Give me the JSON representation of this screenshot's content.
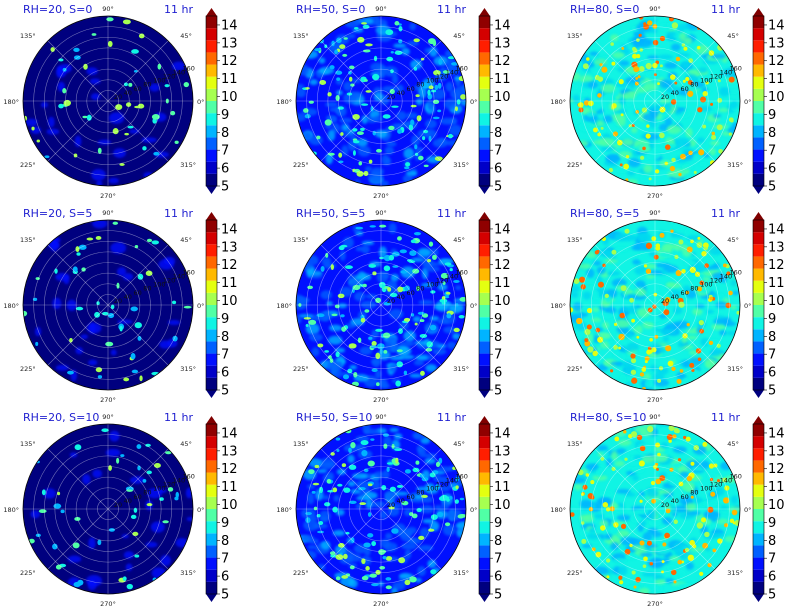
{
  "chart_data": [
    {
      "type": "heatmap",
      "projection": "polar",
      "title": "RH=20, S=0",
      "time_label": "11 hr",
      "field_level": "low",
      "r_tick_labels": [
        "20",
        "40",
        "60",
        "80",
        "100",
        "120",
        "140",
        "160"
      ],
      "angle_labels": [
        "90°",
        "45°",
        "0°",
        "315°",
        "270°",
        "225°",
        "180°",
        "135°"
      ],
      "colorbar": {
        "ticks": [
          "5",
          "6",
          "7",
          "8",
          "9",
          "10",
          "11",
          "12",
          "13",
          "14"
        ],
        "range": [
          5,
          14.5
        ]
      }
    },
    {
      "type": "heatmap",
      "projection": "polar",
      "title": "RH=50, S=0",
      "time_label": "11 hr",
      "field_level": "mid",
      "r_tick_labels": [
        "20",
        "40",
        "60",
        "80",
        "100",
        "120",
        "140",
        "160"
      ],
      "angle_labels": [
        "90°",
        "45°",
        "0°",
        "315°",
        "270°",
        "225°",
        "180°",
        "135°"
      ],
      "colorbar": {
        "ticks": [
          "5",
          "6",
          "7",
          "8",
          "9",
          "10",
          "11",
          "12",
          "13",
          "14"
        ],
        "range": [
          5,
          14.5
        ]
      }
    },
    {
      "type": "heatmap",
      "projection": "polar",
      "title": "RH=80, S=0",
      "time_label": "11 hr",
      "field_level": "high",
      "r_tick_labels": [
        "20",
        "40",
        "60",
        "80",
        "100",
        "120",
        "140",
        "160"
      ],
      "angle_labels": [
        "90°",
        "45°",
        "0°",
        "315°",
        "270°",
        "225°",
        "180°",
        "135°"
      ],
      "colorbar": {
        "ticks": [
          "5",
          "6",
          "7",
          "8",
          "9",
          "10",
          "11",
          "12",
          "13",
          "14"
        ],
        "range": [
          5,
          14.5
        ]
      }
    },
    {
      "type": "heatmap",
      "projection": "polar",
      "title": "RH=20, S=5",
      "time_label": "11 hr",
      "field_level": "low",
      "r_tick_labels": [
        "20",
        "40",
        "60",
        "80",
        "100",
        "120",
        "140",
        "160"
      ],
      "angle_labels": [
        "90°",
        "45°",
        "0°",
        "315°",
        "270°",
        "225°",
        "180°",
        "135°"
      ],
      "colorbar": {
        "ticks": [
          "5",
          "6",
          "7",
          "8",
          "9",
          "10",
          "11",
          "12",
          "13",
          "14"
        ],
        "range": [
          5,
          14.5
        ]
      }
    },
    {
      "type": "heatmap",
      "projection": "polar",
      "title": "RH=50, S=5",
      "time_label": "11 hr",
      "field_level": "mid",
      "r_tick_labels": [
        "20",
        "40",
        "60",
        "80",
        "100",
        "120",
        "140",
        "160"
      ],
      "angle_labels": [
        "90°",
        "45°",
        "0°",
        "315°",
        "270°",
        "225°",
        "180°",
        "135°"
      ],
      "colorbar": {
        "ticks": [
          "5",
          "6",
          "7",
          "8",
          "9",
          "10",
          "11",
          "12",
          "13",
          "14"
        ],
        "range": [
          5,
          14.5
        ]
      }
    },
    {
      "type": "heatmap",
      "projection": "polar",
      "title": "RH=80, S=5",
      "time_label": "11 hr",
      "field_level": "high",
      "r_tick_labels": [
        "20",
        "40",
        "60",
        "80",
        "100",
        "120",
        "140",
        "160"
      ],
      "angle_labels": [
        "90°",
        "45°",
        "0°",
        "315°",
        "270°",
        "225°",
        "180°",
        "135°"
      ],
      "colorbar": {
        "ticks": [
          "5",
          "6",
          "7",
          "8",
          "9",
          "10",
          "11",
          "12",
          "13",
          "14"
        ],
        "range": [
          5,
          14.5
        ]
      }
    },
    {
      "type": "heatmap",
      "projection": "polar",
      "title": "RH=20, S=10",
      "time_label": "11 hr",
      "field_level": "low",
      "r_tick_labels": [
        "20",
        "40",
        "60",
        "80",
        "100",
        "120",
        "140",
        "160"
      ],
      "angle_labels": [
        "90°",
        "45°",
        "0°",
        "315°",
        "270°",
        "225°",
        "180°",
        "135°"
      ],
      "colorbar": {
        "ticks": [
          "5",
          "6",
          "7",
          "8",
          "9",
          "10",
          "11",
          "12",
          "13",
          "14"
        ],
        "range": [
          5,
          14.5
        ]
      }
    },
    {
      "type": "heatmap",
      "projection": "polar",
      "title": "RH=50, S=10",
      "time_label": "11 hr",
      "field_level": "mid",
      "r_tick_labels": [
        "20",
        "40",
        "60",
        "80",
        "100",
        "120",
        "140",
        "160"
      ],
      "angle_labels": [
        "90°",
        "45°",
        "0°",
        "315°",
        "270°",
        "225°",
        "180°",
        "135°"
      ],
      "colorbar": {
        "ticks": [
          "5",
          "6",
          "7",
          "8",
          "9",
          "10",
          "11",
          "12",
          "13",
          "14"
        ],
        "range": [
          5,
          14.5
        ]
      }
    },
    {
      "type": "heatmap",
      "projection": "polar",
      "title": "RH=80, S=10",
      "time_label": "11 hr",
      "field_level": "high",
      "r_tick_labels": [
        "20",
        "40",
        "60",
        "80",
        "100",
        "120",
        "140",
        "160"
      ],
      "angle_labels": [
        "90°",
        "45°",
        "0°",
        "315°",
        "270°",
        "225°",
        "180°",
        "135°"
      ],
      "colorbar": {
        "ticks": [
          "5",
          "6",
          "7",
          "8",
          "9",
          "10",
          "11",
          "12",
          "13",
          "14"
        ],
        "range": [
          5,
          14.5
        ]
      }
    }
  ],
  "colormap": {
    "name": "jet",
    "levels": [
      "#00007f",
      "#0000c8",
      "#0010ff",
      "#0060ff",
      "#00b4ff",
      "#10f4e4",
      "#50ffa6",
      "#a6ff50",
      "#e4ff10",
      "#ffb900",
      "#ff6800",
      "#ff1e00",
      "#d40000",
      "#900000"
    ],
    "under_color": "#00007f",
    "over_color": "#800000"
  }
}
